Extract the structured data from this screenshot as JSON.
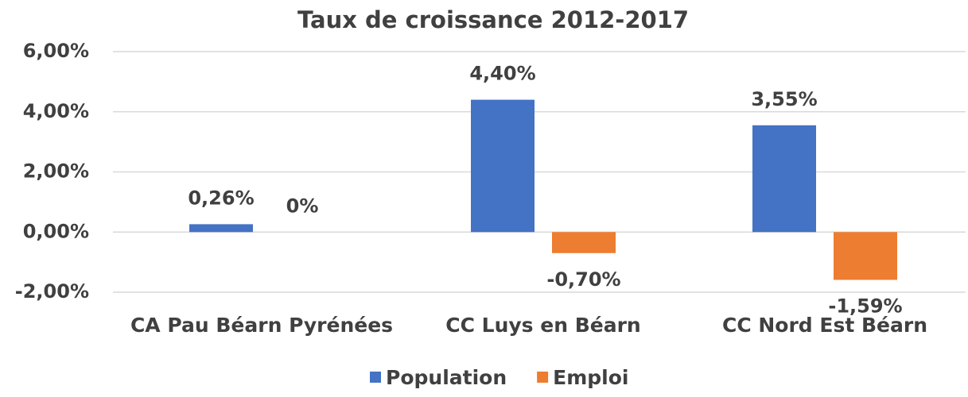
{
  "chart_data": {
    "type": "bar",
    "title": "Taux de croissance 2012-2017",
    "categories": [
      "CA Pau Béarn Pyrénées",
      "CC Luys en Béarn",
      "CC Nord Est Béarn"
    ],
    "series": [
      {
        "name": "Population",
        "color": "#4472c4",
        "values": [
          0.26,
          4.4,
          3.55
        ],
        "value_labels": [
          "0,26%",
          "4,40%",
          "3,55%"
        ]
      },
      {
        "name": "Emploi",
        "color": "#ed7d31",
        "values": [
          0,
          -0.7,
          -1.59
        ],
        "value_labels": [
          "0%",
          "-0,70%",
          "-1,59%"
        ]
      }
    ],
    "ylim": [
      -2,
      6
    ],
    "yticks": [
      {
        "value": -2,
        "label": "-2,00%"
      },
      {
        "value": 0,
        "label": "0,00%"
      },
      {
        "value": 2,
        "label": "2,00%"
      },
      {
        "value": 4,
        "label": "4,00%"
      },
      {
        "value": 6,
        "label": "6,00%"
      }
    ],
    "grid": true,
    "legend": "bottom"
  }
}
